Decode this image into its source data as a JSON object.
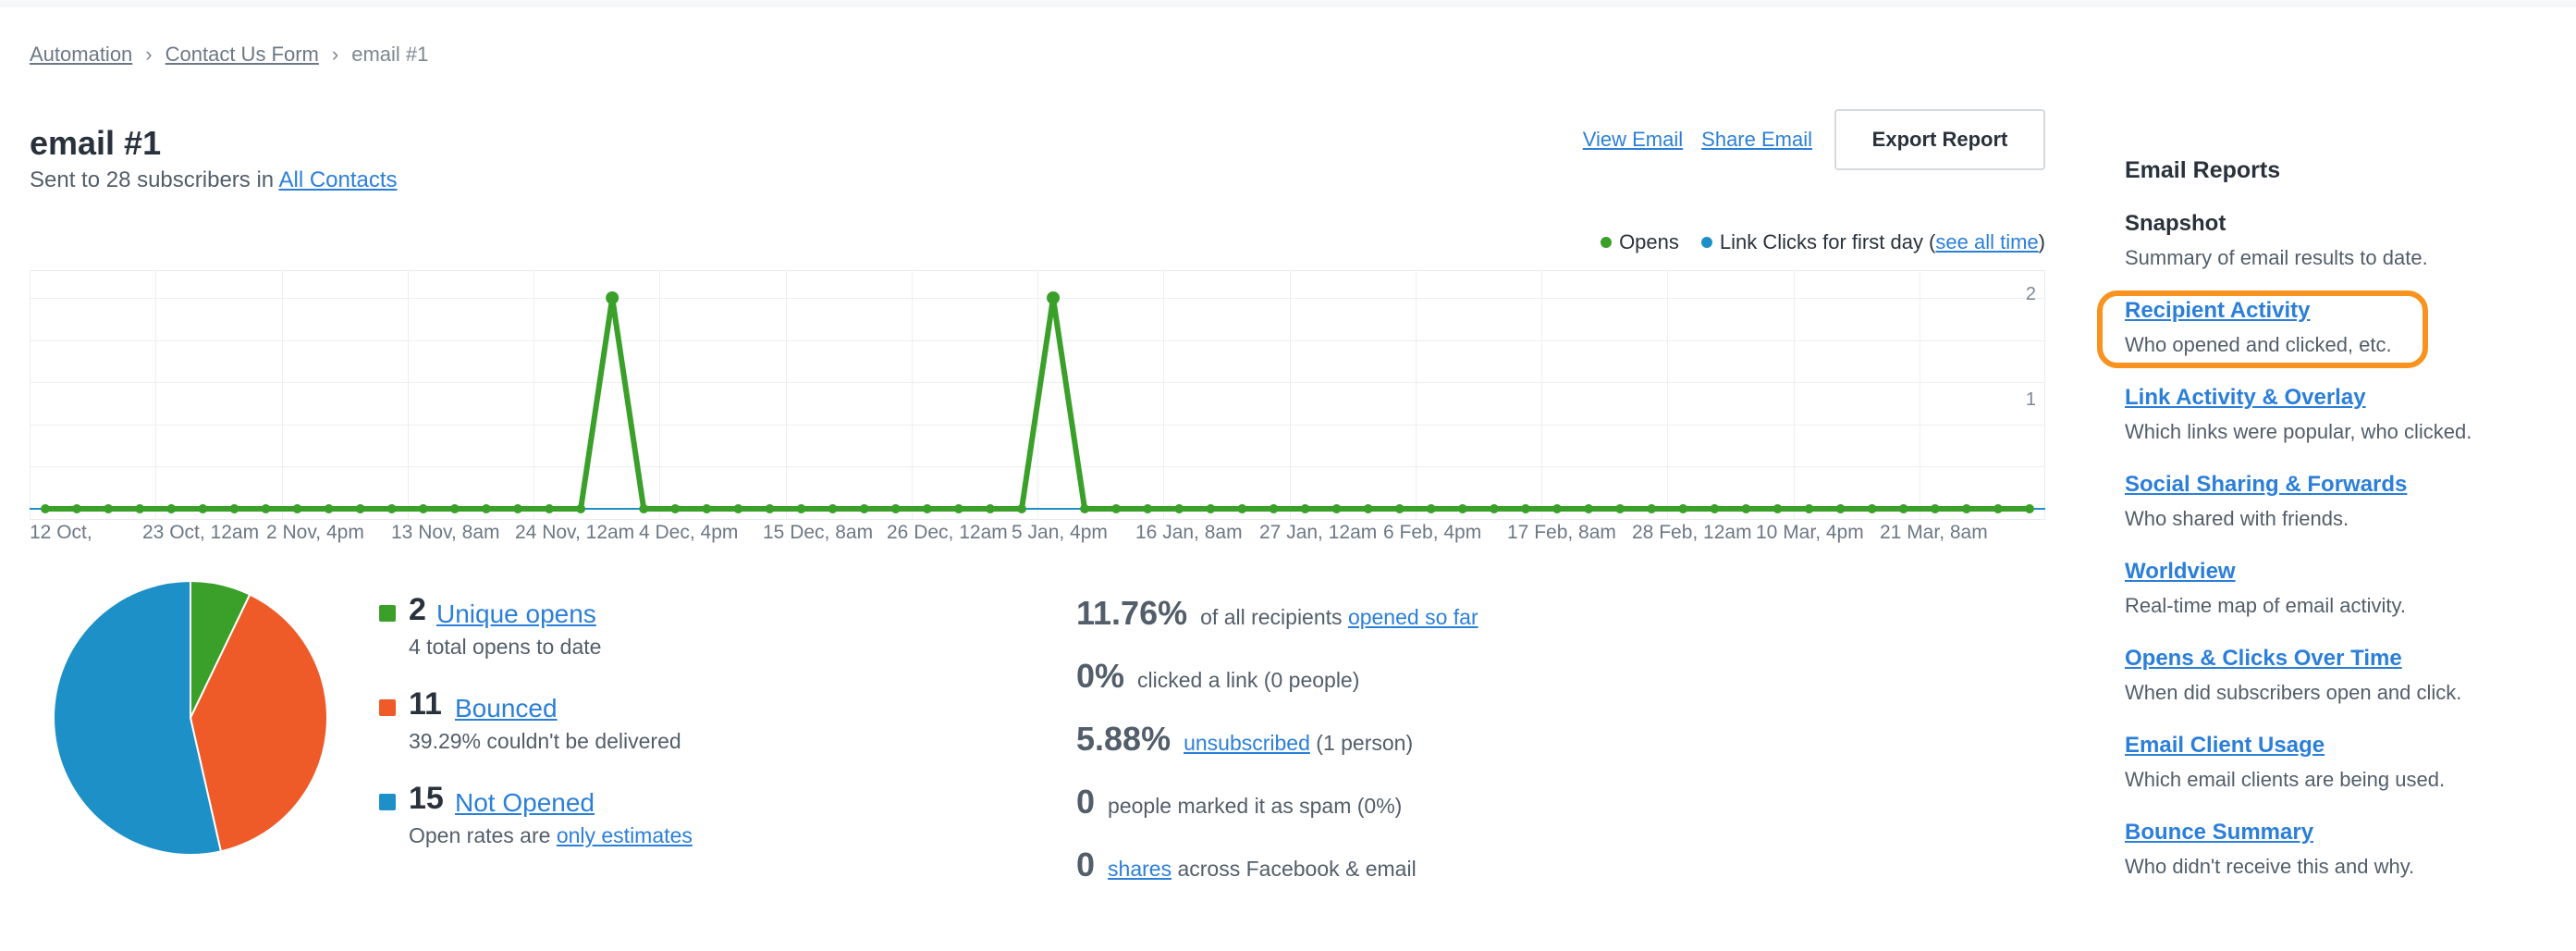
{
  "breadcrumb": {
    "items": [
      "Automation",
      "Contact Us Form",
      "email #1"
    ]
  },
  "header": {
    "title": "email #1",
    "subtitle_prefix": "Sent to 28 subscribers in",
    "subtitle_link": "All Contacts",
    "view_email": "View Email",
    "share_email": "Share Email",
    "export_report": "Export Report"
  },
  "legend": {
    "opens": "Opens",
    "link_clicks": "Link Clicks for first day (",
    "see_all": "see all time",
    "close_paren": ")"
  },
  "colors": {
    "opens": "#3aa02a",
    "clicks": "#1e90c8",
    "bounced": "#ee5a28",
    "not_opened": "#1e90c8",
    "accent_link": "#2b7fd9",
    "highlight": "#f7931e"
  },
  "chart_data": {
    "type": "line",
    "x_tick_labels": [
      "12 Oct,",
      "23 Oct, 12am",
      "2 Nov, 4pm",
      "13 Nov, 8am",
      "24 Nov, 12am",
      "4 Dec, 4pm",
      "15 Dec, 8am",
      "26 Dec, 12am",
      "5 Jan, 4pm",
      "16 Jan, 8am",
      "27 Jan, 12am",
      "6 Feb, 4pm",
      "17 Feb, 8am",
      "28 Feb, 12am",
      "10 Mar, 4pm",
      "21 Mar, 8am"
    ],
    "y_tick_labels": [
      "2",
      "1"
    ],
    "ylim": [
      0,
      2
    ],
    "point_count": 64,
    "series": [
      {
        "name": "Opens",
        "peaks": [
          {
            "index": 18,
            "value": 2
          },
          {
            "index": 32,
            "value": 2
          }
        ],
        "baseline": 0
      },
      {
        "name": "Link Clicks for first day",
        "baseline": 0
      }
    ]
  },
  "pie_data": {
    "type": "pie",
    "slices": [
      {
        "label": "Unique opens",
        "value": 2,
        "color": "#3aa02a"
      },
      {
        "label": "Bounced",
        "value": 11,
        "color": "#ee5a28"
      },
      {
        "label": "Not Opened",
        "value": 15,
        "color": "#1e90c8"
      }
    ]
  },
  "stats": [
    {
      "num": "2",
      "label": "Unique opens",
      "desc": "4 total opens to date",
      "desc_link": ""
    },
    {
      "num": "11",
      "label": "Bounced",
      "desc": "39.29% couldn't be delivered",
      "desc_link": ""
    },
    {
      "num": "15",
      "label": "Not Opened",
      "desc": "Open rates are ",
      "desc_link": "only estimates"
    }
  ],
  "metrics": [
    {
      "big": "11.76%",
      "pre": "of all recipients ",
      "link": "opened so far",
      "post": ""
    },
    {
      "big": "0%",
      "pre": "clicked a link (0 people)",
      "link": "",
      "post": ""
    },
    {
      "big": "5.88%",
      "pre": "",
      "link": "unsubscribed",
      "post": " (1 person)"
    },
    {
      "big": "0",
      "pre": "people marked it as spam (0%)",
      "link": "",
      "post": ""
    },
    {
      "big": "0",
      "pre": "",
      "link": "shares",
      "post": " across Facebook & email"
    }
  ],
  "sidebar": {
    "heading": "Email Reports",
    "items": [
      {
        "title": "Snapshot",
        "desc": "Summary of email results to date."
      },
      {
        "title": "Recipient Activity",
        "desc": "Who opened and clicked, etc."
      },
      {
        "title": "Link Activity & Overlay",
        "desc": "Which links were popular, who clicked."
      },
      {
        "title": "Social Sharing & Forwards",
        "desc": "Who shared with friends."
      },
      {
        "title": "Worldview",
        "desc": "Real-time map of email activity."
      },
      {
        "title": "Opens & Clicks Over Time",
        "desc": "When did subscribers open and click."
      },
      {
        "title": "Email Client Usage",
        "desc": "Which email clients are being used."
      },
      {
        "title": "Bounce Summary",
        "desc": "Who didn't receive this and why."
      }
    ]
  }
}
